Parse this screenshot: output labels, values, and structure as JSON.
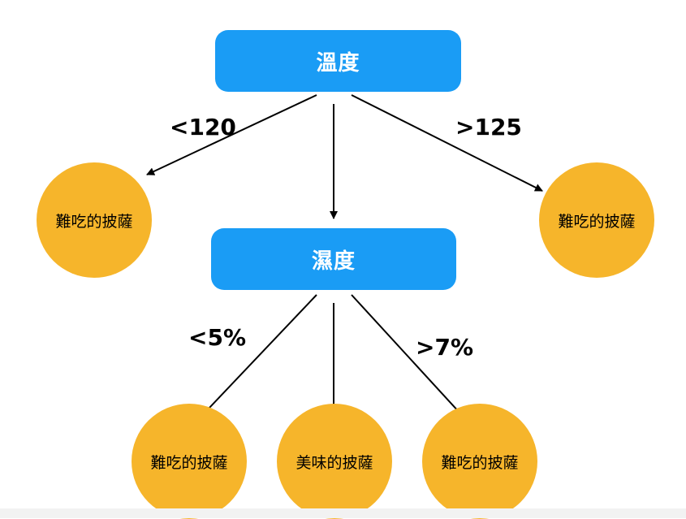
{
  "nodes": {
    "temperature": {
      "label": "溫度"
    },
    "humidity": {
      "label": "濕度"
    },
    "leaf_left": {
      "label": "難吃的披薩"
    },
    "leaf_right": {
      "label": "難吃的披薩"
    },
    "leaf_bottom_left": {
      "label": "難吃的披薩"
    },
    "leaf_bottom_center": {
      "label": "美味的披薩"
    },
    "leaf_bottom_right": {
      "label": "難吃的披薩"
    }
  },
  "edges": {
    "temp_low": {
      "label": "<120"
    },
    "temp_high": {
      "label": ">125"
    },
    "humidity_low": {
      "label": "<5%"
    },
    "humidity_high": {
      "label": ">7%"
    }
  },
  "colors": {
    "box": "#1a9cf5",
    "leaf": "#f6b52b",
    "arrow": "#000000"
  }
}
